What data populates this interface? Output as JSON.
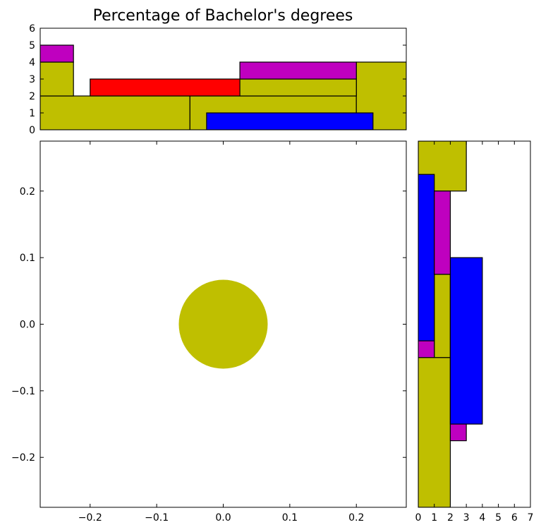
{
  "chart_data": {
    "title": "Percentage of Bachelor's degrees",
    "colors": {
      "olive": "#bfbf00",
      "red": "#ff0000",
      "blue": "#0000ff",
      "magenta": "#bf00bf"
    },
    "panels": [
      {
        "id": "main",
        "type": "scatter",
        "xlim": [
          -0.275,
          0.275
        ],
        "ylim": [
          -0.275,
          0.275
        ],
        "xticks": [
          -0.2,
          -0.1,
          0.0,
          0.1,
          0.2
        ],
        "xtick_labels": [
          "−0.2",
          "−0.1",
          "0.0",
          "0.1",
          "0.2"
        ],
        "yticks": [
          -0.2,
          -0.1,
          0.0,
          0.1,
          0.2
        ],
        "ytick_labels": [
          "−0.2",
          "−0.1",
          "0.0",
          "0.1",
          "0.2"
        ],
        "points": [
          {
            "x": 0.0,
            "y": 0.0,
            "color": "olive"
          }
        ]
      },
      {
        "id": "top-hist",
        "type": "bar",
        "orientation": "vertical",
        "xlim": [
          -0.275,
          0.275
        ],
        "ylim": [
          0,
          6
        ],
        "yticks": [
          0,
          1,
          2,
          3,
          4,
          5,
          6
        ],
        "ytick_labels": [
          "0",
          "1",
          "2",
          "3",
          "4",
          "5",
          "6"
        ],
        "bars": [
          {
            "from": -0.275,
            "to": -0.05,
            "base": 0,
            "height": 2,
            "color": "olive"
          },
          {
            "from": -0.05,
            "to": 0.2,
            "base": 0,
            "height": 2,
            "color": "olive"
          },
          {
            "from": 0.2,
            "to": 0.275,
            "base": 0,
            "height": 4,
            "color": "olive"
          },
          {
            "from": -0.275,
            "to": -0.225,
            "base": 2,
            "height": 2,
            "color": "olive"
          },
          {
            "from": -0.275,
            "to": -0.225,
            "base": 4,
            "height": 1,
            "color": "magenta"
          },
          {
            "from": -0.2,
            "to": 0.025,
            "base": 2,
            "height": 1,
            "color": "red"
          },
          {
            "from": 0.025,
            "to": 0.2,
            "base": 2,
            "height": 1,
            "color": "olive"
          },
          {
            "from": 0.025,
            "to": 0.2,
            "base": 3,
            "height": 1,
            "color": "magenta"
          },
          {
            "from": -0.025,
            "to": 0.225,
            "base": 0,
            "height": 1,
            "color": "blue"
          }
        ]
      },
      {
        "id": "right-hist",
        "type": "bar",
        "orientation": "horizontal",
        "xlim": [
          0,
          7
        ],
        "ylim": [
          -0.275,
          0.275
        ],
        "xticks": [
          0,
          1,
          2,
          3,
          4,
          5,
          6,
          7
        ],
        "xtick_labels": [
          "0",
          "1",
          "2",
          "3",
          "4",
          "5",
          "6",
          "7"
        ],
        "bars": [
          {
            "from": 0.2,
            "to": 0.275,
            "base": 0,
            "width": 3,
            "color": "olive"
          },
          {
            "from": -0.275,
            "to": -0.05,
            "base": 0,
            "width": 2,
            "color": "olive"
          },
          {
            "from": -0.05,
            "to": 0.075,
            "base": 1,
            "width": 1,
            "color": "olive"
          },
          {
            "from": -0.175,
            "to": 0.075,
            "base": 2,
            "width": 1,
            "color": "magenta"
          },
          {
            "from": -0.15,
            "to": 0.1,
            "base": 2,
            "width": 2,
            "color": "blue"
          },
          {
            "from": -0.025,
            "to": 0.225,
            "base": 0,
            "width": 1,
            "color": "blue"
          },
          {
            "from": 0.075,
            "to": 0.2,
            "base": 1,
            "width": 1,
            "color": "magenta"
          },
          {
            "from": -0.05,
            "to": -0.025,
            "base": 0,
            "width": 1,
            "color": "magenta"
          }
        ]
      }
    ]
  }
}
